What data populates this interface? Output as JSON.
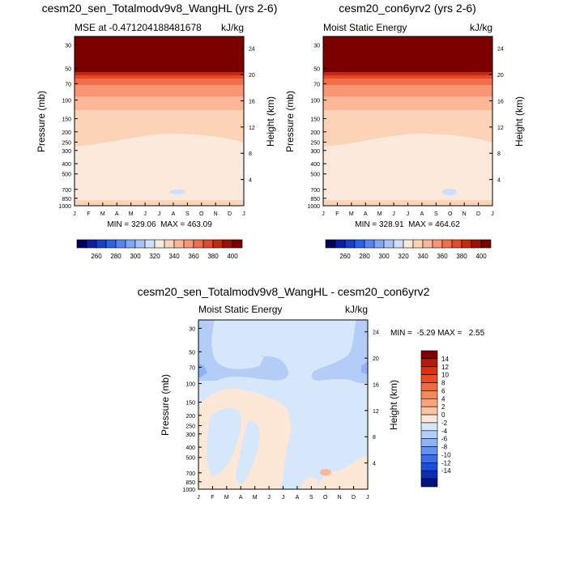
{
  "chart_data": [
    {
      "type": "heatmap",
      "title": "cesm20_sen_Totalmodv9v8_WangHL (yrs 2-6)",
      "subtitle_left": "MSE at -0.471204188481678",
      "subtitle_right": "kJ/kg",
      "xlabel": "",
      "ylabel": "Pressure (mb)",
      "ylabel_right": "Height (km)",
      "x": [
        "J",
        "F",
        "M",
        "A",
        "M",
        "J",
        "J",
        "A",
        "S",
        "O",
        "N",
        "D",
        "J"
      ],
      "pressure_ticks": [
        30,
        50,
        70,
        100,
        150,
        200,
        250,
        300,
        400,
        500,
        700,
        850,
        1000
      ],
      "height_ticks": [
        24,
        20,
        16,
        12,
        8,
        4
      ],
      "stats": "MIN = 329.06  MAX = 463.09",
      "colorbar_labels": [
        260,
        280,
        300,
        320,
        340,
        360,
        380,
        400
      ],
      "colorbar_colors": [
        "#02025d",
        "#0a1fa3",
        "#1540cc",
        "#2c63e6",
        "#5686f2",
        "#7ea7f5",
        "#a8c4f7",
        "#cde0fa",
        "#fbeadb",
        "#fdd3b8",
        "#fcb597",
        "#f99574",
        "#f06f4d",
        "#e24a2c",
        "#c4280f",
        "#9e1006",
        "#7c0000"
      ]
    },
    {
      "type": "heatmap",
      "title": "cesm20_con6yrv2 (yrs 2-6)",
      "subtitle_left": "Moist Static Energy",
      "subtitle_right": "kJ/kg",
      "xlabel": "",
      "ylabel": "Pressure (mb)",
      "ylabel_right": "Height (km)",
      "x": [
        "J",
        "F",
        "M",
        "A",
        "M",
        "J",
        "J",
        "A",
        "S",
        "O",
        "N",
        "D",
        "J"
      ],
      "pressure_ticks": [
        30,
        50,
        70,
        100,
        150,
        200,
        250,
        300,
        400,
        500,
        700,
        850,
        1000
      ],
      "height_ticks": [
        24,
        20,
        16,
        12,
        8,
        4
      ],
      "stats": "MIN = 328.91  MAX = 464.62",
      "colorbar_labels": [
        260,
        280,
        300,
        320,
        340,
        360,
        380,
        400
      ],
      "colorbar_colors": [
        "#02025d",
        "#0a1fa3",
        "#1540cc",
        "#2c63e6",
        "#5686f2",
        "#7ea7f5",
        "#a8c4f7",
        "#cde0fa",
        "#fbeadb",
        "#fdd3b8",
        "#fcb597",
        "#f99574",
        "#f06f4d",
        "#e24a2c",
        "#c4280f",
        "#9e1006",
        "#7c0000"
      ]
    },
    {
      "type": "heatmap",
      "title": "cesm20_sen_Totalmodv9v8_WangHL - cesm20_con6yrv2",
      "subtitle_left": "Moist Static Energy",
      "subtitle_right": "kJ/kg",
      "xlabel": "",
      "ylabel": "Pressure (mb)",
      "ylabel_right": "Height (km)",
      "x": [
        "J",
        "F",
        "M",
        "A",
        "M",
        "J",
        "J",
        "A",
        "S",
        "O",
        "N",
        "D",
        "J"
      ],
      "pressure_ticks": [
        30,
        50,
        70,
        100,
        150,
        200,
        250,
        300,
        400,
        500,
        700,
        850,
        1000
      ],
      "height_ticks": [
        24,
        20,
        16,
        12,
        8,
        4
      ],
      "stats": "MIN =  -5.29 MAX =   2.55",
      "colorbar_labels": [
        "14",
        "12",
        "10",
        "8",
        "6",
        "4",
        "2",
        "0",
        "-2",
        "-4",
        "-6",
        "-8",
        "-10",
        "-12",
        "-14"
      ],
      "colorbar_colors": [
        "#7c0000",
        "#b81a0a",
        "#e02e12",
        "#f04a1f",
        "#f7683a",
        "#fa8758",
        "#fca47c",
        "#fdc3a2",
        "#fde7d6",
        "#d6e6fb",
        "#b4cdf7",
        "#8fb2f3",
        "#6492ee",
        "#3d6ee6",
        "#1c4ed8",
        "#0b2fb0",
        "#03127c"
      ]
    }
  ]
}
